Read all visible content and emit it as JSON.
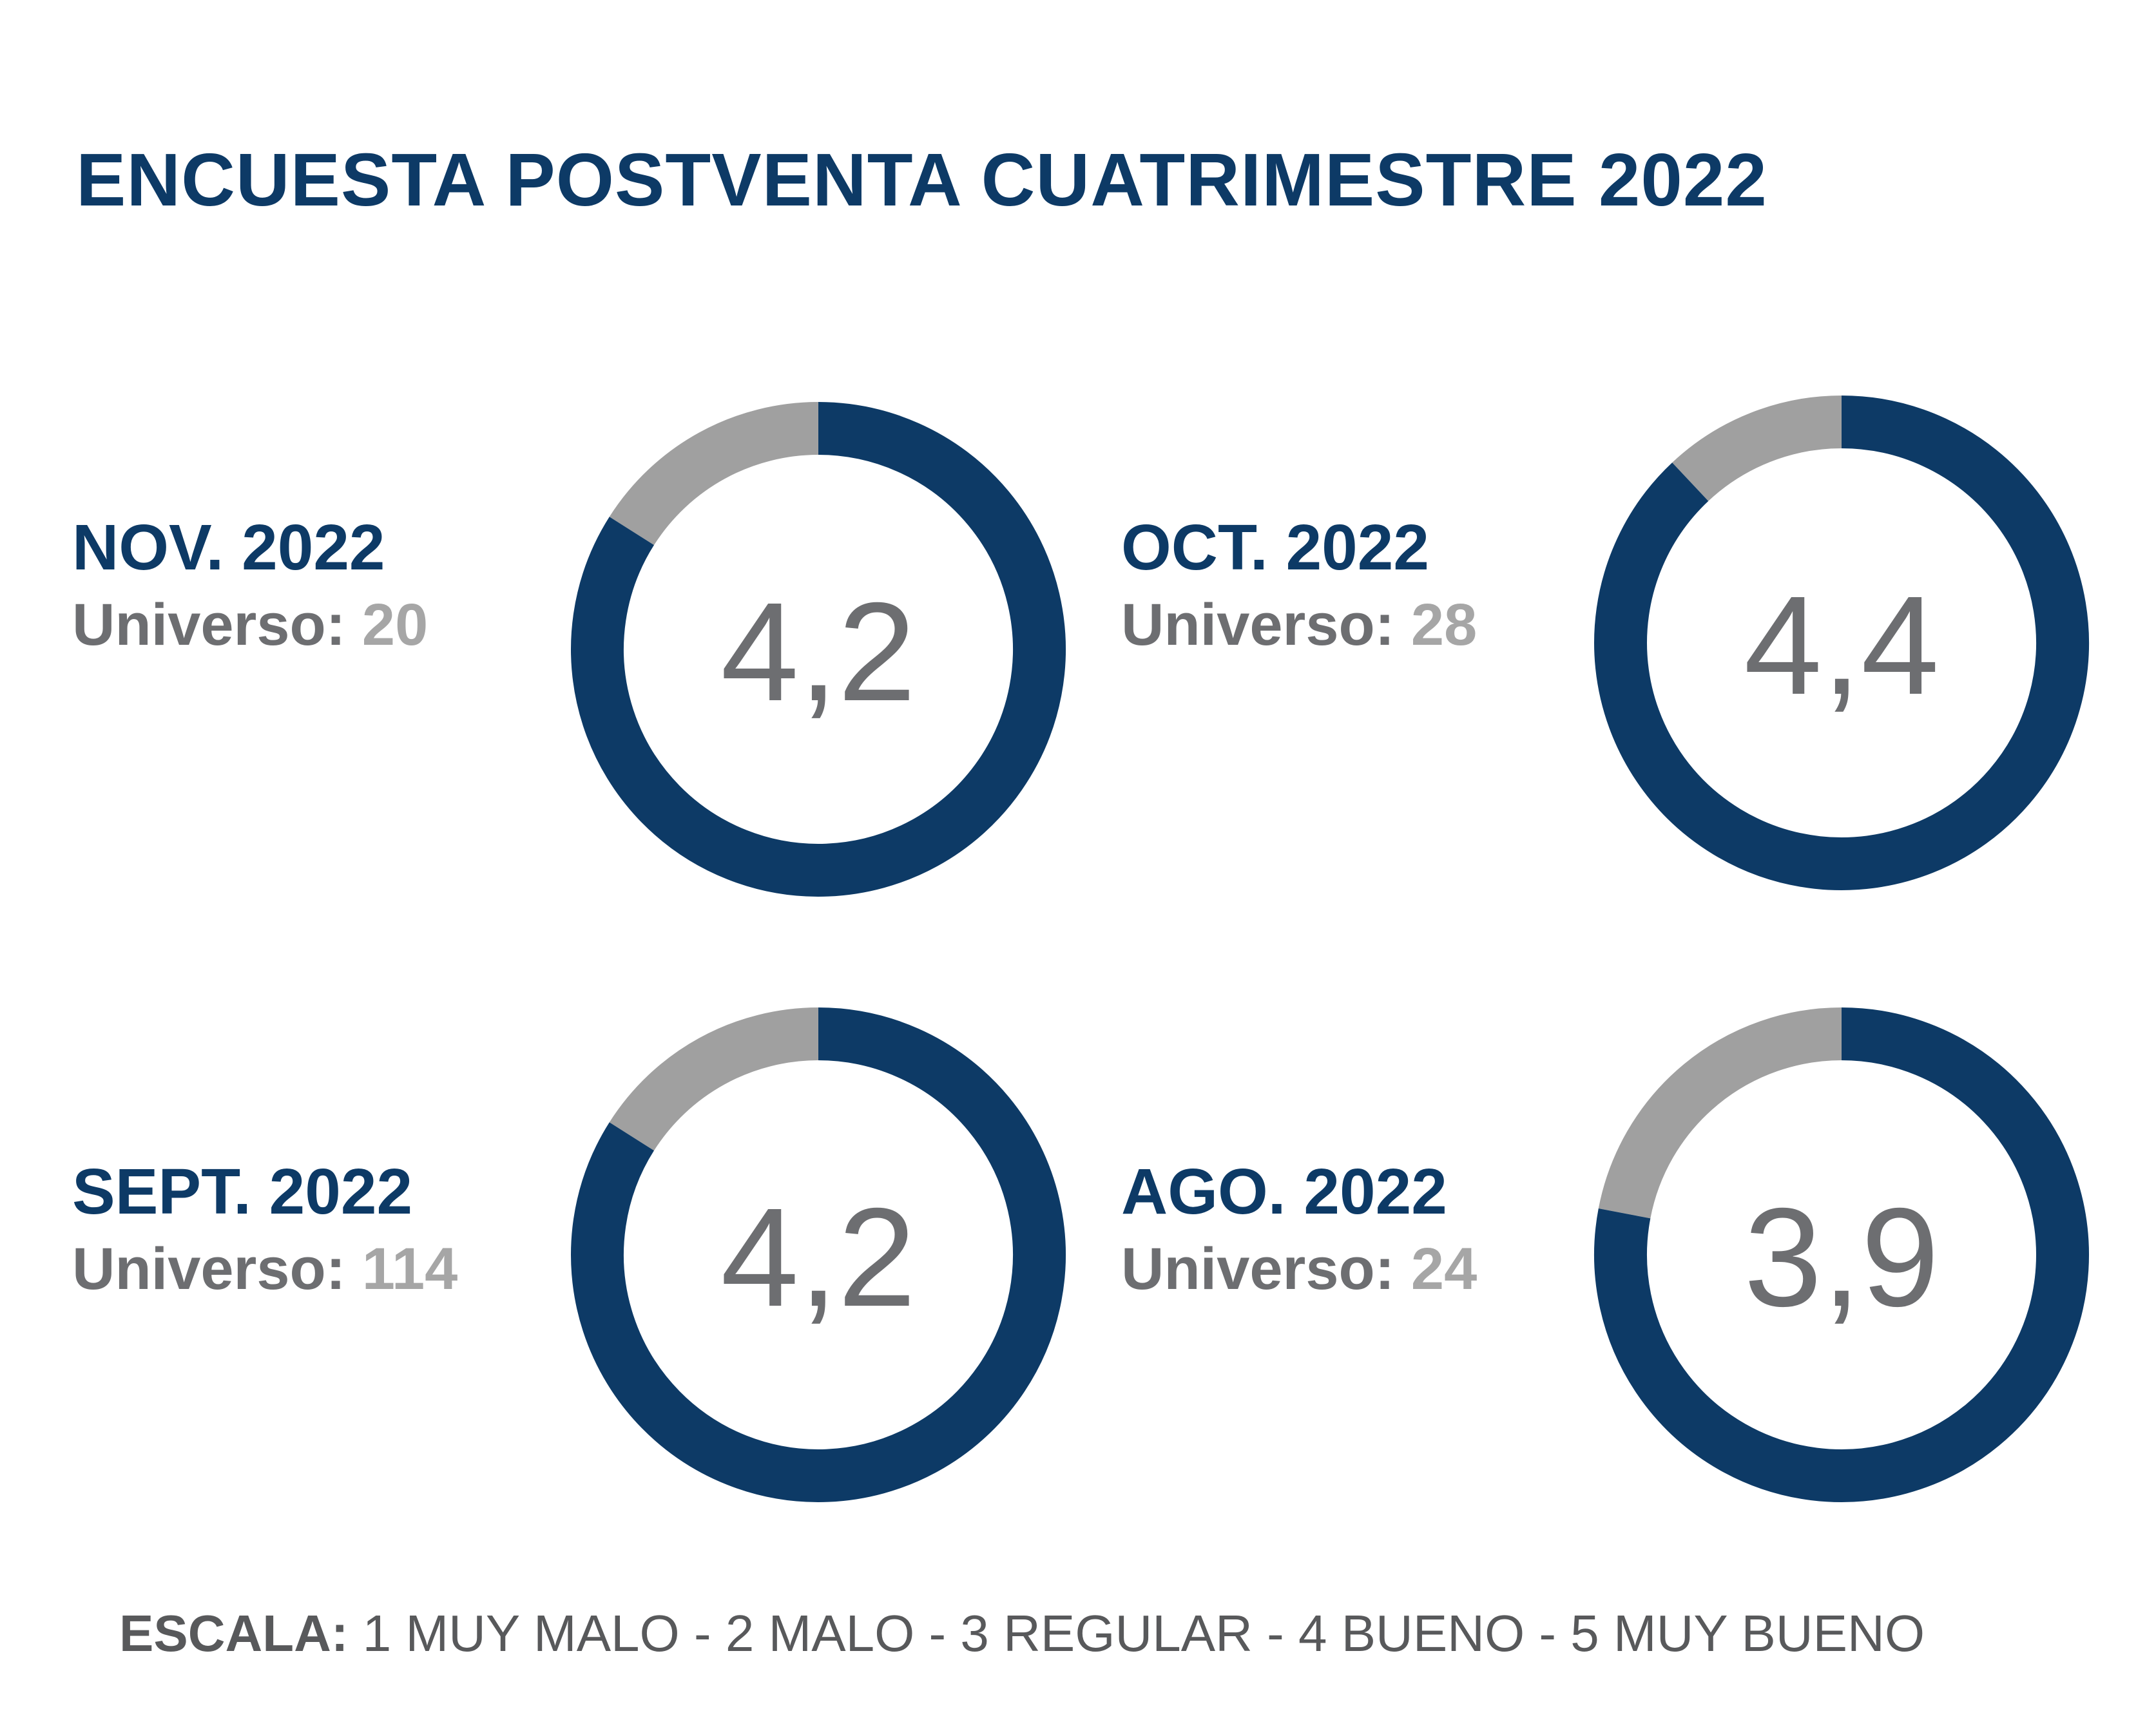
{
  "title": "ENCUESTA POSTVENTA CUATRIMESTRE 2022",
  "colors": {
    "primary": "#0d3a66",
    "remainder": "#a0a0a0",
    "value_text": "#6d6e71",
    "universe_number": "#a6a6a6"
  },
  "panels": [
    {
      "month": "NOV. 2022",
      "universe_label": "Universo:",
      "universe_value": "20",
      "score_label": "4,2"
    },
    {
      "month": "OCT. 2022",
      "universe_label": "Universo:",
      "universe_value": "28",
      "score_label": "4,4"
    },
    {
      "month": "SEPT. 2022",
      "universe_label": "Universo:",
      "universe_value": "114",
      "score_label": "4,2"
    },
    {
      "month": "AGO. 2022",
      "universe_label": "Universo:",
      "universe_value": "24",
      "score_label": "3,9"
    }
  ],
  "chart_data": {
    "type": "pie",
    "max_score": 5,
    "categories": [
      "NOV. 2022",
      "OCT. 2022",
      "SEPT. 2022",
      "AGO. 2022"
    ],
    "values": [
      4.2,
      4.4,
      4.2,
      3.9
    ],
    "universe": [
      20,
      28,
      114,
      24
    ]
  },
  "scale": {
    "label": "ESCALA:",
    "text": "1 MUY MALO - 2 MALO - 3 REGULAR -  4 BUENO  - 5 MUY BUENO"
  }
}
